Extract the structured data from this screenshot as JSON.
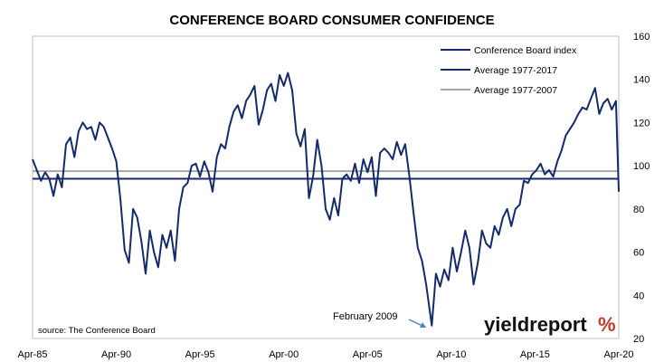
{
  "chart_data": {
    "type": "line",
    "title": "CONFERENCE BOARD CONSUMER CONFIDENCE",
    "xlabel": "",
    "ylabel": "",
    "x_ticks": [
      "Apr-85",
      "Apr-90",
      "Apr-95",
      "Apr-00",
      "Apr-05",
      "Apr-10",
      "Apr-15",
      "Apr-20"
    ],
    "y_ticks": [
      "20",
      "40",
      "60",
      "80",
      "100",
      "120",
      "140",
      "160"
    ],
    "ylim": [
      20,
      160
    ],
    "xlim": [
      "1985-04",
      "2020-04"
    ],
    "y_axis_side": "right",
    "grid": false,
    "legend_position": "top-right",
    "colors": {
      "index": "#142a6b",
      "avg_1977_2017": "#142a6b",
      "avg_1977_2007": "#a6a6a6"
    },
    "series": [
      {
        "name": "Conference Board index",
        "x": [
          "1985-04",
          "1985-07",
          "1985-10",
          "1986-01",
          "1986-04",
          "1986-07",
          "1986-10",
          "1987-01",
          "1987-04",
          "1987-07",
          "1987-10",
          "1988-01",
          "1988-04",
          "1988-07",
          "1988-10",
          "1989-01",
          "1989-04",
          "1989-07",
          "1989-10",
          "1990-01",
          "1990-04",
          "1990-07",
          "1990-10",
          "1991-01",
          "1991-04",
          "1991-07",
          "1991-10",
          "1992-01",
          "1992-04",
          "1992-07",
          "1992-10",
          "1993-01",
          "1993-04",
          "1993-07",
          "1993-10",
          "1994-01",
          "1994-04",
          "1994-07",
          "1994-10",
          "1995-01",
          "1995-04",
          "1995-07",
          "1995-10",
          "1996-01",
          "1996-04",
          "1996-07",
          "1996-10",
          "1997-01",
          "1997-04",
          "1997-07",
          "1997-10",
          "1998-01",
          "1998-04",
          "1998-07",
          "1998-10",
          "1999-01",
          "1999-04",
          "1999-07",
          "1999-10",
          "2000-01",
          "2000-04",
          "2000-07",
          "2000-10",
          "2001-01",
          "2001-04",
          "2001-07",
          "2001-10",
          "2002-01",
          "2002-04",
          "2002-07",
          "2002-10",
          "2003-01",
          "2003-04",
          "2003-07",
          "2003-10",
          "2004-01",
          "2004-04",
          "2004-07",
          "2004-10",
          "2005-01",
          "2005-04",
          "2005-07",
          "2005-10",
          "2006-01",
          "2006-04",
          "2006-07",
          "2006-10",
          "2007-01",
          "2007-04",
          "2007-07",
          "2007-10",
          "2008-01",
          "2008-04",
          "2008-07",
          "2008-10",
          "2009-02",
          "2009-05",
          "2009-08",
          "2009-11",
          "2010-02",
          "2010-05",
          "2010-08",
          "2010-11",
          "2011-02",
          "2011-05",
          "2011-08",
          "2011-11",
          "2012-02",
          "2012-05",
          "2012-08",
          "2012-11",
          "2013-02",
          "2013-05",
          "2013-08",
          "2013-11",
          "2014-02",
          "2014-05",
          "2014-08",
          "2014-11",
          "2015-02",
          "2015-05",
          "2015-08",
          "2015-11",
          "2016-02",
          "2016-05",
          "2016-08",
          "2016-11",
          "2017-02",
          "2017-05",
          "2017-08",
          "2017-11",
          "2018-02",
          "2018-05",
          "2018-08",
          "2018-11",
          "2019-02",
          "2019-05",
          "2019-08",
          "2019-11",
          "2020-02",
          "2020-04"
        ],
        "values": [
          103,
          98,
          93,
          97,
          94,
          86,
          96,
          90,
          110,
          113,
          104,
          116,
          120,
          117,
          118,
          112,
          120,
          118,
          113,
          108,
          102,
          84,
          61,
          55,
          80,
          76,
          65,
          50,
          70,
          60,
          53,
          68,
          62,
          70,
          56,
          80,
          90,
          92,
          100,
          101,
          95,
          102,
          97,
          88,
          104,
          110,
          108,
          118,
          125,
          128,
          122,
          130,
          133,
          137,
          119,
          126,
          135,
          138,
          130,
          142,
          137,
          143,
          135,
          115,
          109,
          117,
          85,
          95,
          112,
          100,
          80,
          75,
          85,
          77,
          94,
          96,
          93,
          101,
          92,
          103,
          97,
          104,
          86,
          106,
          108,
          106,
          103,
          111,
          105,
          110,
          95,
          78,
          62,
          56,
          45,
          26,
          50,
          44,
          52,
          47,
          62,
          51,
          60,
          70,
          62,
          45,
          55,
          70,
          64,
          62,
          72,
          68,
          76,
          80,
          72,
          80,
          82,
          93,
          92,
          96,
          98,
          101,
          96,
          98,
          95,
          102,
          107,
          114,
          117,
          120,
          124,
          127,
          126,
          131,
          136,
          124,
          129,
          131,
          126,
          130,
          88
        ]
      },
      {
        "name": "Average 1977-2017",
        "values": [
          94
        ]
      },
      {
        "name": "Average 1977-2007",
        "values": [
          97.5
        ]
      }
    ],
    "annotations": [
      {
        "text": "February 2009",
        "x": "2009-02",
        "y": 26
      }
    ]
  },
  "source_text": "source: The Conference Board",
  "logo": {
    "text_main": "yieldreport",
    "text_pct": "%"
  }
}
